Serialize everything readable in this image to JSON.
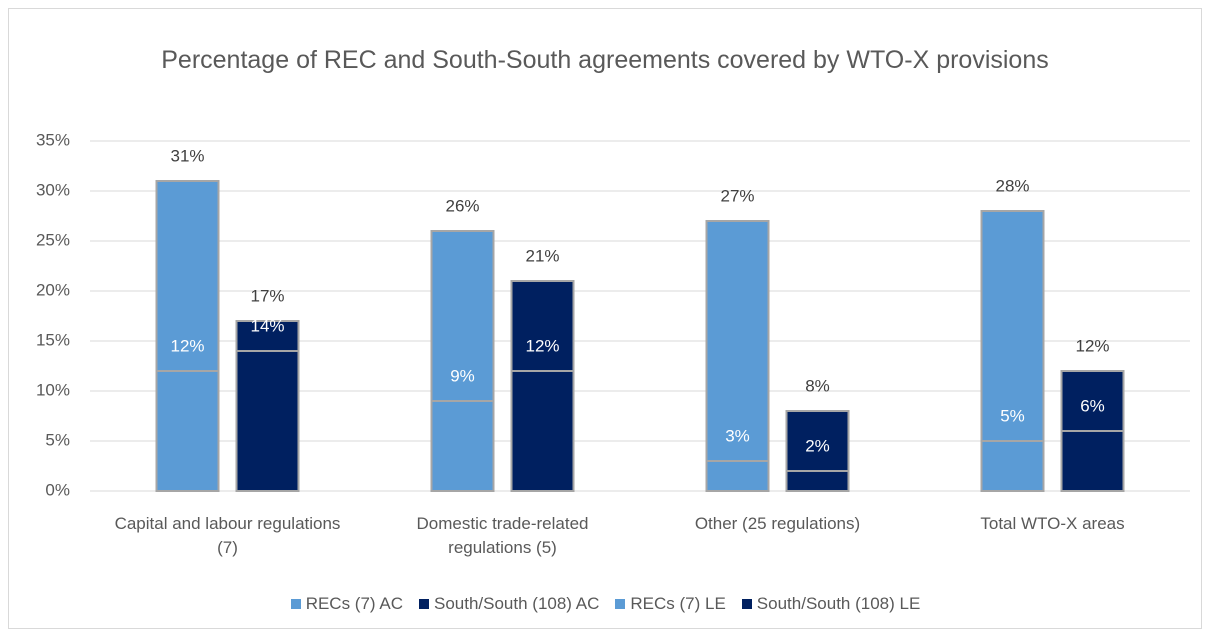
{
  "chart_data": {
    "type": "bar",
    "overlap": true,
    "title": "Percentage of REC and South-South agreements covered by WTO-X provisions",
    "categories": [
      "Capital and labour regulations (7)",
      "Domestic trade-related regulations (5)",
      "Other (25 regulations)",
      "Total WTO-X areas"
    ],
    "series": [
      {
        "name": "RECs (7) AC",
        "color": "#5b9bd5",
        "values": [
          31,
          26,
          27,
          28
        ],
        "value_labels": [
          "31%",
          "26%",
          "27%",
          "28%"
        ]
      },
      {
        "name": "South/South (108) AC",
        "color": "#002060",
        "values": [
          17,
          21,
          8,
          12
        ],
        "value_labels": [
          "17%",
          "21%",
          "8%",
          "12%"
        ]
      },
      {
        "name": "RECs (7) LE",
        "color": "#5b9bd5",
        "values": [
          12,
          9,
          3,
          5
        ],
        "value_labels": [
          "12%",
          "9%",
          "3%",
          "5%"
        ]
      },
      {
        "name": "South/South (108) LE",
        "color": "#002060",
        "values": [
          14,
          12,
          2,
          6
        ],
        "value_labels": [
          "14%",
          "12%",
          "2%",
          "6%"
        ]
      }
    ],
    "ylim": [
      0,
      35
    ],
    "yticks": [
      {
        "value": 0,
        "label": "0%"
      },
      {
        "value": 5,
        "label": "5%"
      },
      {
        "value": 10,
        "label": "10%"
      },
      {
        "value": 15,
        "label": "15%"
      },
      {
        "value": 20,
        "label": "20%"
      },
      {
        "value": 25,
        "label": "25%"
      },
      {
        "value": 30,
        "label": "30%"
      },
      {
        "value": 35,
        "label": "35%"
      }
    ],
    "grid": true,
    "legend": "bottom"
  }
}
